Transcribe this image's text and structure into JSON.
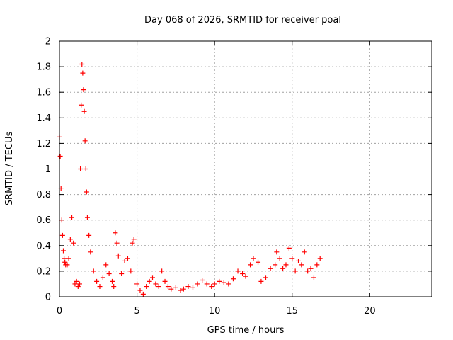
{
  "chart_data": {
    "type": "scatter",
    "title": "Day 068 of 2026, SRMTID for receiver poal",
    "xlabel": "GPS time / hours",
    "ylabel": "SRMTID / TECUs",
    "xlim": [
      0,
      24
    ],
    "ylim": [
      0,
      2
    ],
    "xticks": [
      0,
      5,
      10,
      15,
      20
    ],
    "yticks": [
      0,
      0.2,
      0.4,
      0.6,
      0.8,
      1,
      1.2,
      1.4,
      1.6,
      1.8,
      2
    ],
    "ytick_labels": [
      "0",
      "0.2",
      "0.4",
      "0.6",
      "0.8",
      "1",
      "1.2",
      "1.4",
      "1.6",
      "1.8",
      "2"
    ],
    "grid": true,
    "marker": "+",
    "color": "#ff0000",
    "series": [
      {
        "name": "SRMTID",
        "x": [
          0.0,
          0.05,
          0.1,
          0.15,
          0.2,
          0.25,
          0.3,
          0.35,
          0.4,
          0.5,
          0.6,
          0.7,
          0.8,
          0.9,
          1.0,
          1.1,
          1.2,
          1.3,
          1.35,
          1.4,
          1.45,
          1.5,
          1.55,
          1.6,
          1.65,
          1.7,
          1.75,
          1.8,
          1.9,
          2.0,
          2.2,
          2.4,
          2.6,
          2.8,
          3.0,
          3.2,
          3.4,
          3.5,
          3.6,
          3.7,
          3.8,
          4.0,
          4.2,
          4.4,
          4.6,
          4.7,
          4.8,
          5.0,
          5.2,
          5.4,
          5.6,
          5.8,
          6.0,
          6.2,
          6.4,
          6.6,
          6.8,
          7.0,
          7.2,
          7.5,
          7.8,
          8.0,
          8.3,
          8.6,
          8.9,
          9.2,
          9.5,
          9.8,
          10.0,
          10.3,
          10.6,
          10.9,
          11.2,
          11.5,
          11.8,
          12.0,
          12.3,
          12.5,
          12.8,
          13.0,
          13.3,
          13.6,
          13.9,
          14.0,
          14.2,
          14.4,
          14.6,
          14.8,
          15.0,
          15.2,
          15.4,
          15.6,
          15.8,
          16.0,
          16.2,
          16.4,
          16.6,
          16.8
        ],
        "values": [
          1.25,
          1.1,
          0.85,
          0.6,
          0.48,
          0.36,
          0.3,
          0.27,
          0.25,
          0.25,
          0.3,
          0.45,
          0.62,
          0.42,
          0.1,
          0.12,
          0.08,
          0.1,
          1.0,
          1.5,
          1.82,
          1.75,
          1.62,
          1.45,
          1.22,
          1.0,
          0.82,
          0.62,
          0.48,
          0.35,
          0.2,
          0.12,
          0.08,
          0.15,
          0.25,
          0.18,
          0.12,
          0.08,
          0.5,
          0.42,
          0.32,
          0.18,
          0.28,
          0.3,
          0.2,
          0.42,
          0.45,
          0.1,
          0.05,
          0.02,
          0.08,
          0.12,
          0.15,
          0.1,
          0.08,
          0.2,
          0.12,
          0.08,
          0.06,
          0.07,
          0.05,
          0.06,
          0.08,
          0.07,
          0.1,
          0.13,
          0.1,
          0.08,
          0.1,
          0.12,
          0.11,
          0.1,
          0.14,
          0.2,
          0.18,
          0.16,
          0.25,
          0.3,
          0.27,
          0.12,
          0.15,
          0.22,
          0.25,
          0.35,
          0.3,
          0.22,
          0.25,
          0.38,
          0.3,
          0.2,
          0.28,
          0.25,
          0.35,
          0.2,
          0.22,
          0.15,
          0.25,
          0.3
        ]
      }
    ]
  }
}
